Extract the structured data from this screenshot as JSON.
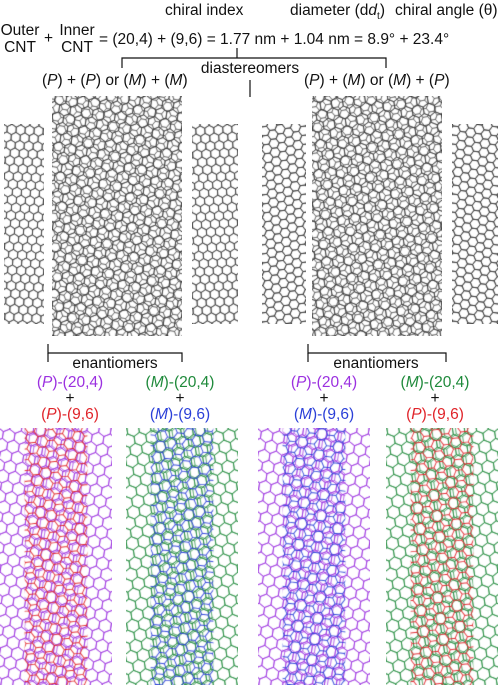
{
  "colors": {
    "P": "#9b30e0",
    "M": "#1f8a3b",
    "red": "#e0242a",
    "blue": "#2a3fd8",
    "gray": "#333333"
  },
  "header": {
    "outer_1": "Outer",
    "outer_2": "CNT",
    "plus": "+",
    "inner_1": "Inner",
    "inner_2": "CNT",
    "equation": "= (20,4) + (9,6) = 1.77 nm + 1.04 nm = 8.9° + 23.4°",
    "col_chiral_index": "chiral index",
    "col_diameter": "diameter (d",
    "col_diameter_sub": "t",
    "col_diameter_end": ")",
    "col_chiral_angle": "chiral angle (θ)"
  },
  "diastereomers": {
    "label": "diastereomers",
    "left": {
      "a": "P",
      "b": "P",
      "or": "or",
      "c": "M",
      "d": "M"
    },
    "right": {
      "a": "P",
      "b": "M",
      "or": "or",
      "c": "M",
      "d": "P"
    }
  },
  "enantiomers": {
    "label": "enantiomers",
    "pairs": [
      {
        "top_hand": "P",
        "top_index": "-(20,4)",
        "plus": "+",
        "bot_hand": "P",
        "bot_index": "-(9,6)",
        "top_color": "P",
        "bot_color": "red"
      },
      {
        "top_hand": "M",
        "top_index": "-(20,4)",
        "plus": "+",
        "bot_hand": "M",
        "bot_index": "-(9,6)",
        "top_color": "M",
        "bot_color": "blue"
      },
      {
        "top_hand": "P",
        "top_index": "-(20,4)",
        "plus": "+",
        "bot_hand": "M",
        "bot_index": "-(9,6)",
        "top_color": "P",
        "bot_color": "blue"
      },
      {
        "top_hand": "M",
        "top_index": "-(20,4)",
        "plus": "+",
        "bot_hand": "P",
        "bot_index": "-(9,6)",
        "top_color": "M",
        "bot_color": "red"
      }
    ]
  }
}
